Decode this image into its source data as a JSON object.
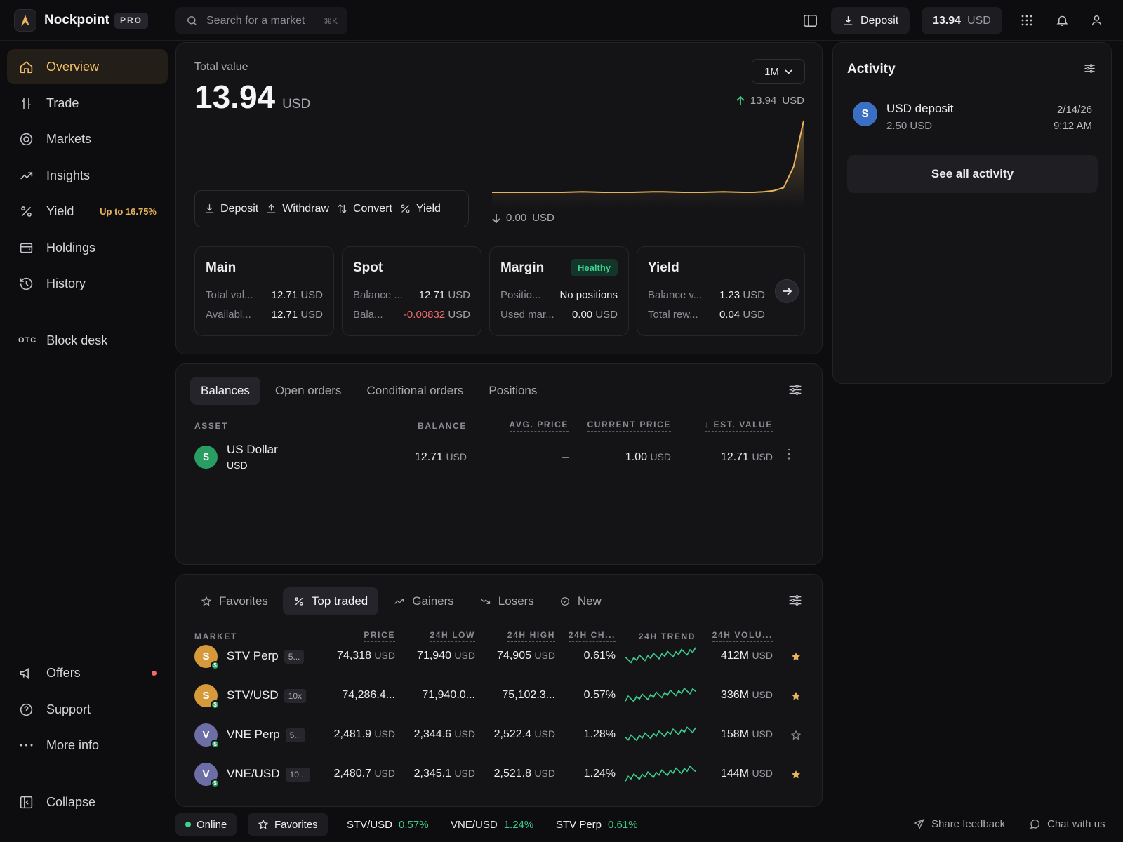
{
  "app": {
    "name": "Nockpoint",
    "badge": "PRO"
  },
  "search": {
    "placeholder": "Search for a market",
    "shortcut": "⌘K"
  },
  "header": {
    "deposit_label": "Deposit",
    "balance_value": "13.94",
    "balance_unit": "USD"
  },
  "sidebar": {
    "items": [
      {
        "label": "Overview",
        "icon": "home-icon",
        "active": true
      },
      {
        "label": "Trade",
        "icon": "trade-icon"
      },
      {
        "label": "Markets",
        "icon": "markets-icon"
      },
      {
        "label": "Insights",
        "icon": "trend-icon"
      },
      {
        "label": "Yield",
        "icon": "percent-icon",
        "badge": "Up to 16.75%"
      },
      {
        "label": "Holdings",
        "icon": "wallet-icon"
      },
      {
        "label": "History",
        "icon": "history-icon"
      }
    ],
    "otc": {
      "tag": "OTC",
      "label": "Block desk"
    },
    "bottom": [
      {
        "label": "Offers",
        "icon": "megaphone-icon"
      },
      {
        "label": "Support",
        "icon": "help-icon"
      },
      {
        "label": "More info",
        "icon": "more-icon"
      }
    ],
    "collapse": "Collapse"
  },
  "total": {
    "label": "Total value",
    "value": "13.94",
    "unit": "USD",
    "range": "1M",
    "high": "13.94",
    "high_unit": "USD",
    "low": "0.00",
    "low_unit": "USD",
    "actions": [
      "Deposit",
      "Withdraw",
      "Convert",
      "Yield"
    ],
    "sparkline": [
      0.0,
      0.0,
      0.0,
      0.0,
      0.0,
      0.0,
      0.0,
      0.0,
      0.05,
      0.1,
      0.05,
      0.0,
      0.0,
      0.0,
      0.0,
      0.05,
      0.1,
      0.1,
      0.05,
      0.0,
      0.0,
      0.0,
      0.05,
      0.1,
      0.05,
      0.0,
      0.0,
      0.1,
      0.3,
      0.9,
      5.0,
      13.94
    ],
    "accent": "#e7b45c"
  },
  "accounts": [
    {
      "name": "Main",
      "rows": [
        {
          "k": "Total val...",
          "v": "12.71",
          "u": "USD"
        },
        {
          "k": "Availabl...",
          "v": "12.71",
          "u": "USD"
        }
      ]
    },
    {
      "name": "Spot",
      "rows": [
        {
          "k": "Balance ...",
          "v": "12.71",
          "u": "USD"
        },
        {
          "k": "Bala...",
          "v": "-0.00832",
          "u": "USD",
          "neg": true
        }
      ]
    },
    {
      "name": "Margin",
      "badge": "Healthy",
      "rows": [
        {
          "k": "Positio...",
          "v": "No positions",
          "u": ""
        },
        {
          "k": "Used mar...",
          "v": "0.00",
          "u": "USD"
        }
      ]
    },
    {
      "name": "Yield",
      "rows": [
        {
          "k": "Balance v...",
          "v": "1.23",
          "u": "USD"
        },
        {
          "k": "Total rew...",
          "v": "0.04",
          "u": "USD"
        }
      ]
    }
  ],
  "activity": {
    "title": "Activity",
    "items": [
      {
        "title": "USD deposit",
        "amount": "2.50 USD",
        "date": "2/14/26",
        "time": "9:12 AM",
        "icon": "dollar-icon"
      }
    ],
    "see_all": "See all activity"
  },
  "balances": {
    "tabs": [
      "Balances",
      "Open orders",
      "Conditional orders",
      "Positions"
    ],
    "columns": [
      "ASSET",
      "BALANCE",
      "AVG. PRICE",
      "CURRENT PRICE",
      "EST. VALUE"
    ],
    "rows": [
      {
        "name": "US Dollar",
        "symbol": "USD",
        "balance": "12.71",
        "balance_unit": "USD",
        "avg": "–",
        "current": "1.00",
        "current_unit": "USD",
        "est": "12.71",
        "est_unit": "USD"
      }
    ]
  },
  "markets": {
    "tabs": [
      "Favorites",
      "Top traded",
      "Gainers",
      "Losers",
      "New"
    ],
    "columns": [
      "MARKET",
      "PRICE",
      "24H LOW",
      "24H HIGH",
      "24H CH...",
      "24H TREND",
      "24H VOLU..."
    ],
    "rows": [
      {
        "letter": "S",
        "name": "STV Perp",
        "lev": "5...",
        "price": "74,318",
        "price_u": "USD",
        "low": "71,940",
        "low_u": "USD",
        "high": "74,905",
        "high_u": "USD",
        "change": "0.61%",
        "volume": "412M",
        "vol_u": "USD",
        "fav": true,
        "color": "#d69a3a"
      },
      {
        "letter": "S",
        "name": "STV/USD",
        "lev": "10x",
        "price": "74,286.4...",
        "price_u": "",
        "low": "71,940.0...",
        "low_u": "",
        "high": "75,102.3...",
        "high_u": "",
        "change": "0.57%",
        "volume": "336M",
        "vol_u": "USD",
        "fav": true,
        "color": "#d69a3a"
      },
      {
        "letter": "V",
        "name": "VNE Perp",
        "lev": "5...",
        "price": "2,481.9",
        "price_u": "USD",
        "low": "2,344.6",
        "low_u": "USD",
        "high": "2,522.4",
        "high_u": "USD",
        "change": "1.28%",
        "volume": "158M",
        "vol_u": "USD",
        "fav": false,
        "color": "#6e6ea6"
      },
      {
        "letter": "V",
        "name": "VNE/USD",
        "lev": "10...",
        "price": "2,480.7",
        "price_u": "USD",
        "low": "2,345.1",
        "low_u": "USD",
        "high": "2,521.8",
        "high_u": "USD",
        "change": "1.24%",
        "volume": "144M",
        "vol_u": "USD",
        "fav": true,
        "color": "#6e6ea6"
      }
    ]
  },
  "statusbar": {
    "online": "Online",
    "favorites": "Favorites",
    "tickers": [
      {
        "pair": "STV/USD",
        "change": "0.57%"
      },
      {
        "pair": "VNE/USD",
        "change": "1.24%"
      },
      {
        "pair": "STV Perp",
        "change": "0.61%"
      }
    ],
    "feedback": "Share feedback",
    "chat": "Chat with us"
  }
}
